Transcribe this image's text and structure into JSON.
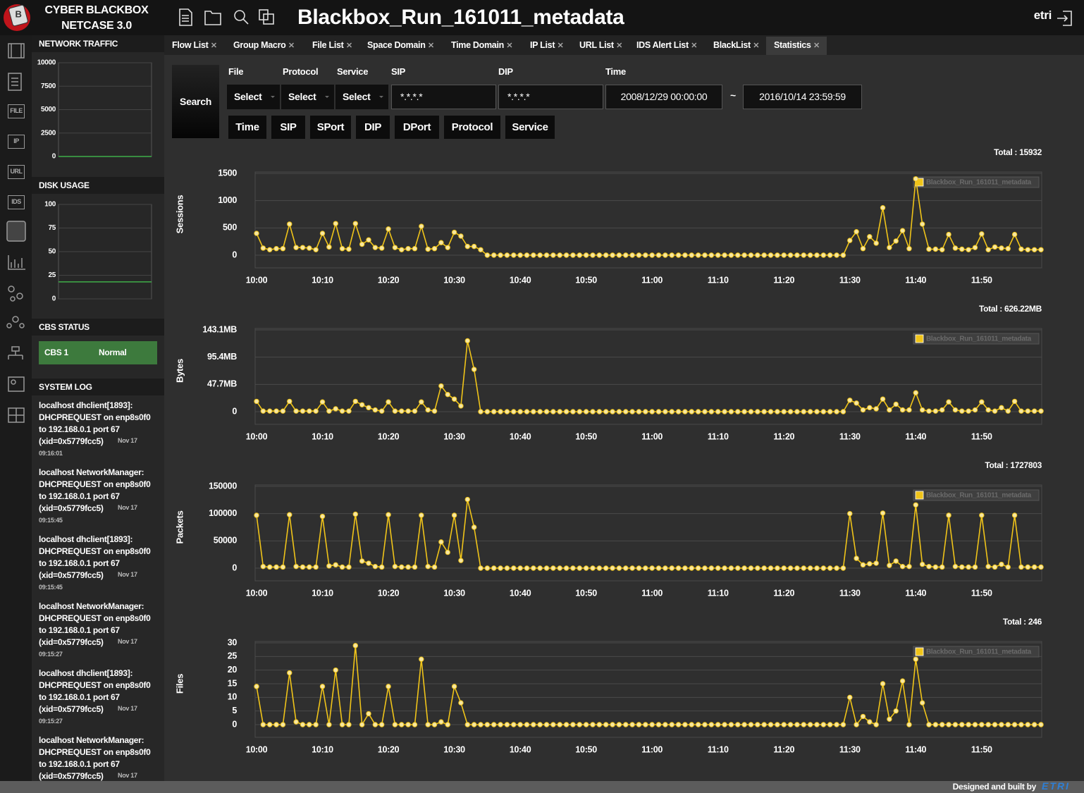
{
  "header": {
    "logo_letter": "B",
    "brand": [
      "CYBER BLACKBOX",
      "NETCASE 3.0"
    ],
    "title": "Blackbox_Run_161011_metadata",
    "user": "etri"
  },
  "nav_icons": [
    "FILE",
    "IP",
    "URL",
    "IDS"
  ],
  "tabs": [
    "Flow List",
    "Group Macro",
    "File List",
    "Space Domain",
    "Time Domain",
    "IP List",
    "URL List",
    "IDS Alert List",
    "BlackList",
    "Statistics"
  ],
  "sidebar": {
    "network_traffic": {
      "title": "NETWORK TRAFFIC",
      "ylim": [
        0,
        10000
      ],
      "yticks": [
        0,
        2500,
        5000,
        7500,
        10000
      ],
      "values": [
        0,
        0
      ],
      "color": "#3fae49"
    },
    "disk_usage": {
      "title": "DISK USAGE",
      "ylim": [
        0,
        100
      ],
      "yticks": [
        0,
        25,
        50,
        75,
        100
      ],
      "values": [
        18,
        18
      ],
      "color": "#3fae49"
    },
    "cbs_status": {
      "title": "CBS STATUS",
      "name": "CBS 1",
      "status": "Normal"
    },
    "system_log": {
      "title": "SYSTEM LOG",
      "entries": [
        {
          "lines": [
            "localhost dhclient[1893]:",
            "DHCPREQUEST on enp8s0f0",
            "to 192.168.0.1 port 67",
            "(xid=0x5779fcc5)"
          ],
          "date": "Nov 17",
          "time": "09:16:01"
        },
        {
          "lines": [
            "localhost NetworkManager:",
            "DHCPREQUEST on enp8s0f0",
            "to 192.168.0.1 port 67",
            "(xid=0x5779fcc5)"
          ],
          "date": "Nov 17",
          "time": "09:15:45"
        },
        {
          "lines": [
            "localhost dhclient[1893]:",
            "DHCPREQUEST on enp8s0f0",
            "to 192.168.0.1 port 67",
            "(xid=0x5779fcc5)"
          ],
          "date": "Nov 17",
          "time": "09:15:45"
        },
        {
          "lines": [
            "localhost NetworkManager:",
            "DHCPREQUEST on enp8s0f0",
            "to 192.168.0.1 port 67",
            "(xid=0x5779fcc5)"
          ],
          "date": "Nov 17",
          "time": "09:15:27"
        },
        {
          "lines": [
            "localhost dhclient[1893]:",
            "DHCPREQUEST on enp8s0f0",
            "to 192.168.0.1 port 67",
            "(xid=0x5779fcc5)"
          ],
          "date": "Nov 17",
          "time": "09:15:27"
        },
        {
          "lines": [
            "localhost NetworkManager:",
            "DHCPREQUEST on enp8s0f0",
            "to 192.168.0.1 port 67",
            "(xid=0x5779fcc5)"
          ],
          "date": "Nov 17"
        }
      ]
    }
  },
  "search": {
    "button": "Search",
    "field_labels": [
      "File",
      "Protocol",
      "Service",
      "SIP",
      "DIP",
      "Time"
    ],
    "selects": [
      "Select",
      "Select",
      "Select"
    ],
    "sip": "*.*.*.*",
    "dip": "*.*.*.*",
    "time_from": "2008/12/29 00:00:00",
    "time_separator": "~",
    "time_to": "2016/10/14 23:59:59",
    "group_by": [
      "Time",
      "SIP",
      "SPort",
      "DIP",
      "DPort",
      "Protocol",
      "Service"
    ]
  },
  "chart_data": [
    {
      "type": "line",
      "y_label": "Sessions",
      "total": "Total : 15932",
      "categories": [
        "10:00",
        null,
        null,
        null,
        null,
        null,
        null,
        null,
        null,
        null,
        "10:10",
        null,
        null,
        null,
        null,
        null,
        null,
        null,
        null,
        null,
        "10:20",
        null,
        null,
        null,
        null,
        null,
        null,
        null,
        null,
        null,
        "10:30",
        null,
        null,
        null,
        null,
        null,
        null,
        null,
        null,
        null,
        "10:40",
        null,
        null,
        null,
        null,
        null,
        null,
        null,
        null,
        null,
        "10:50",
        null,
        null,
        null,
        null,
        null,
        null,
        null,
        null,
        null,
        "11:00",
        null,
        null,
        null,
        null,
        null,
        null,
        null,
        null,
        null,
        "11:10",
        null,
        null,
        null,
        null,
        null,
        null,
        null,
        null,
        null,
        "11:20",
        null,
        null,
        null,
        null,
        null,
        null,
        null,
        null,
        null,
        "11:30",
        null,
        null,
        null,
        null,
        null,
        null,
        null,
        null,
        null,
        "11:40",
        null,
        null,
        null,
        null,
        null,
        null,
        null,
        null,
        null,
        "11:50",
        null,
        null,
        null,
        null,
        null,
        null,
        null,
        null,
        null
      ],
      "ylim": [
        0,
        1500
      ],
      "yticks": [
        0,
        500,
        1000,
        1500
      ],
      "series": [
        {
          "name": "Blackbox_Run_161011_metadata",
          "color": "#f0c419",
          "values": [
            400,
            130,
            100,
            120,
            120,
            570,
            140,
            140,
            130,
            100,
            400,
            150,
            580,
            120,
            110,
            580,
            200,
            280,
            140,
            130,
            480,
            140,
            100,
            120,
            120,
            530,
            110,
            120,
            230,
            140,
            420,
            350,
            160,
            160,
            100,
            0,
            0,
            0,
            0,
            0,
            0,
            0,
            0,
            0,
            0,
            0,
            0,
            0,
            0,
            0,
            0,
            0,
            0,
            0,
            0,
            0,
            0,
            0,
            0,
            0,
            0,
            0,
            0,
            0,
            0,
            0,
            0,
            0,
            0,
            0,
            0,
            0,
            0,
            0,
            0,
            0,
            0,
            0,
            0,
            0,
            0,
            0,
            0,
            0,
            0,
            0,
            0,
            0,
            0,
            0,
            270,
            430,
            120,
            340,
            220,
            870,
            140,
            260,
            450,
            120,
            1400,
            570,
            110,
            110,
            100,
            380,
            130,
            110,
            100,
            140,
            390,
            100,
            150,
            130,
            120,
            380,
            110,
            100,
            100,
            100
          ]
        }
      ]
    },
    {
      "type": "line",
      "y_label": "Bytes",
      "total": "Total : 626.22MB",
      "categories": [
        "10:00",
        null,
        null,
        null,
        null,
        null,
        null,
        null,
        null,
        null,
        "10:10",
        null,
        null,
        null,
        null,
        null,
        null,
        null,
        null,
        null,
        "10:20",
        null,
        null,
        null,
        null,
        null,
        null,
        null,
        null,
        null,
        "10:30",
        null,
        null,
        null,
        null,
        null,
        null,
        null,
        null,
        null,
        "10:40",
        null,
        null,
        null,
        null,
        null,
        null,
        null,
        null,
        null,
        "10:50",
        null,
        null,
        null,
        null,
        null,
        null,
        null,
        null,
        null,
        "11:00",
        null,
        null,
        null,
        null,
        null,
        null,
        null,
        null,
        null,
        "11:10",
        null,
        null,
        null,
        null,
        null,
        null,
        null,
        null,
        null,
        "11:20",
        null,
        null,
        null,
        null,
        null,
        null,
        null,
        null,
        null,
        "11:30",
        null,
        null,
        null,
        null,
        null,
        null,
        null,
        null,
        null,
        "11:40",
        null,
        null,
        null,
        null,
        null,
        null,
        null,
        null,
        null,
        "11:50",
        null,
        null,
        null,
        null,
        null,
        null,
        null,
        null,
        null
      ],
      "ylim": [
        0,
        143.1
      ],
      "yticks": [
        0,
        {
          "value": 47.7,
          "label": "47.7MB"
        },
        {
          "value": 95.4,
          "label": "95.4MB"
        },
        {
          "value": 143.1,
          "label": "143.1MB"
        }
      ],
      "series": [
        {
          "name": "Blackbox_Run_161011_metadata",
          "color": "#f0c419",
          "values": [
            18,
            1,
            1,
            1,
            1,
            18,
            1,
            1,
            1,
            1,
            17,
            1,
            5,
            1,
            1,
            18,
            12,
            7,
            3,
            1,
            17,
            1,
            1,
            1,
            1,
            17,
            3,
            1,
            45,
            30,
            22,
            10,
            124,
            74,
            0,
            0,
            0,
            0,
            0,
            0,
            0,
            0,
            0,
            0,
            0,
            0,
            0,
            0,
            0,
            0,
            0,
            0,
            0,
            0,
            0,
            0,
            0,
            0,
            0,
            0,
            0,
            0,
            0,
            0,
            0,
            0,
            0,
            0,
            0,
            0,
            0,
            0,
            0,
            0,
            0,
            0,
            0,
            0,
            0,
            0,
            0,
            0,
            0,
            0,
            0,
            0,
            0,
            0,
            0,
            0,
            20,
            15,
            3,
            7,
            5,
            22,
            3,
            13,
            3,
            3,
            33,
            3,
            1,
            1,
            3,
            17,
            3,
            1,
            1,
            3,
            17,
            3,
            1,
            7,
            1,
            18,
            1,
            1,
            1,
            1
          ]
        }
      ]
    },
    {
      "type": "line",
      "y_label": "Packets",
      "total": "Total : 1727803",
      "categories": [
        "10:00",
        null,
        null,
        null,
        null,
        null,
        null,
        null,
        null,
        null,
        "10:10",
        null,
        null,
        null,
        null,
        null,
        null,
        null,
        null,
        null,
        "10:20",
        null,
        null,
        null,
        null,
        null,
        null,
        null,
        null,
        null,
        "10:30",
        null,
        null,
        null,
        null,
        null,
        null,
        null,
        null,
        null,
        "10:40",
        null,
        null,
        null,
        null,
        null,
        null,
        null,
        null,
        null,
        "10:50",
        null,
        null,
        null,
        null,
        null,
        null,
        null,
        null,
        null,
        "11:00",
        null,
        null,
        null,
        null,
        null,
        null,
        null,
        null,
        null,
        "11:10",
        null,
        null,
        null,
        null,
        null,
        null,
        null,
        null,
        null,
        "11:20",
        null,
        null,
        null,
        null,
        null,
        null,
        null,
        null,
        null,
        "11:30",
        null,
        null,
        null,
        null,
        null,
        null,
        null,
        null,
        null,
        "11:40",
        null,
        null,
        null,
        null,
        null,
        null,
        null,
        null,
        null,
        "11:50",
        null,
        null,
        null,
        null,
        null,
        null,
        null,
        null,
        null
      ],
      "ylim": [
        0,
        150000
      ],
      "yticks": [
        0,
        50000,
        100000,
        150000
      ],
      "series": [
        {
          "name": "Blackbox_Run_161011_metadata",
          "color": "#f0c419",
          "values": [
            97000,
            3000,
            2000,
            2000,
            2000,
            98000,
            3000,
            2000,
            2000,
            2000,
            95000,
            4000,
            6000,
            2000,
            2000,
            99000,
            13000,
            9000,
            3000,
            2000,
            98000,
            3000,
            2000,
            2000,
            2000,
            97000,
            3000,
            2000,
            48000,
            29000,
            97000,
            14000,
            126000,
            75000,
            0,
            0,
            0,
            0,
            0,
            0,
            0,
            0,
            0,
            0,
            0,
            0,
            0,
            0,
            0,
            0,
            0,
            0,
            0,
            0,
            0,
            0,
            0,
            0,
            0,
            0,
            0,
            0,
            0,
            0,
            0,
            0,
            0,
            0,
            0,
            0,
            0,
            0,
            0,
            0,
            0,
            0,
            0,
            0,
            0,
            0,
            0,
            0,
            0,
            0,
            0,
            0,
            0,
            0,
            0,
            0,
            100000,
            18000,
            6000,
            8000,
            9000,
            101000,
            5000,
            13000,
            3000,
            3000,
            116000,
            7000,
            3000,
            2000,
            2000,
            97000,
            3000,
            2000,
            2000,
            2000,
            97000,
            3000,
            2000,
            7000,
            2000,
            97000,
            2000,
            2000,
            2000,
            2000
          ]
        }
      ]
    },
    {
      "type": "line",
      "y_label": "Files",
      "total": "Total : 246",
      "categories": [
        "10:00",
        null,
        null,
        null,
        null,
        null,
        null,
        null,
        null,
        null,
        "10:10",
        null,
        null,
        null,
        null,
        null,
        null,
        null,
        null,
        null,
        "10:20",
        null,
        null,
        null,
        null,
        null,
        null,
        null,
        null,
        null,
        "10:30",
        null,
        null,
        null,
        null,
        null,
        null,
        null,
        null,
        null,
        "10:40",
        null,
        null,
        null,
        null,
        null,
        null,
        null,
        null,
        null,
        "10:50",
        null,
        null,
        null,
        null,
        null,
        null,
        null,
        null,
        null,
        "11:00",
        null,
        null,
        null,
        null,
        null,
        null,
        null,
        null,
        null,
        "11:10",
        null,
        null,
        null,
        null,
        null,
        null,
        null,
        null,
        null,
        "11:20",
        null,
        null,
        null,
        null,
        null,
        null,
        null,
        null,
        null,
        "11:30",
        null,
        null,
        null,
        null,
        null,
        null,
        null,
        null,
        null,
        "11:40",
        null,
        null,
        null,
        null,
        null,
        null,
        null,
        null,
        null,
        "11:50",
        null,
        null,
        null,
        null,
        null,
        null,
        null,
        null,
        null
      ],
      "ylim": [
        0,
        30
      ],
      "yticks": [
        0,
        5,
        10,
        15,
        20,
        25,
        30
      ],
      "series": [
        {
          "name": "Blackbox_Run_161011_metadata",
          "color": "#f0c419",
          "values": [
            14,
            0,
            0,
            0,
            0,
            19,
            1,
            0,
            0,
            0,
            14,
            0,
            20,
            0,
            0,
            29,
            0,
            4,
            0,
            0,
            14,
            0,
            0,
            0,
            0,
            24,
            0,
            0,
            1,
            0,
            14,
            8,
            0,
            0,
            0,
            0,
            0,
            0,
            0,
            0,
            0,
            0,
            0,
            0,
            0,
            0,
            0,
            0,
            0,
            0,
            0,
            0,
            0,
            0,
            0,
            0,
            0,
            0,
            0,
            0,
            0,
            0,
            0,
            0,
            0,
            0,
            0,
            0,
            0,
            0,
            0,
            0,
            0,
            0,
            0,
            0,
            0,
            0,
            0,
            0,
            0,
            0,
            0,
            0,
            0,
            0,
            0,
            0,
            0,
            0,
            10,
            0,
            3,
            1,
            0,
            15,
            2,
            5,
            16,
            0,
            24,
            8,
            0,
            0,
            0,
            0,
            0,
            0,
            0,
            0,
            0,
            0,
            0,
            0,
            0,
            0,
            0,
            0,
            0,
            0
          ]
        }
      ]
    }
  ],
  "footer": {
    "credit": "Designed and built by",
    "org": "ETRI"
  }
}
